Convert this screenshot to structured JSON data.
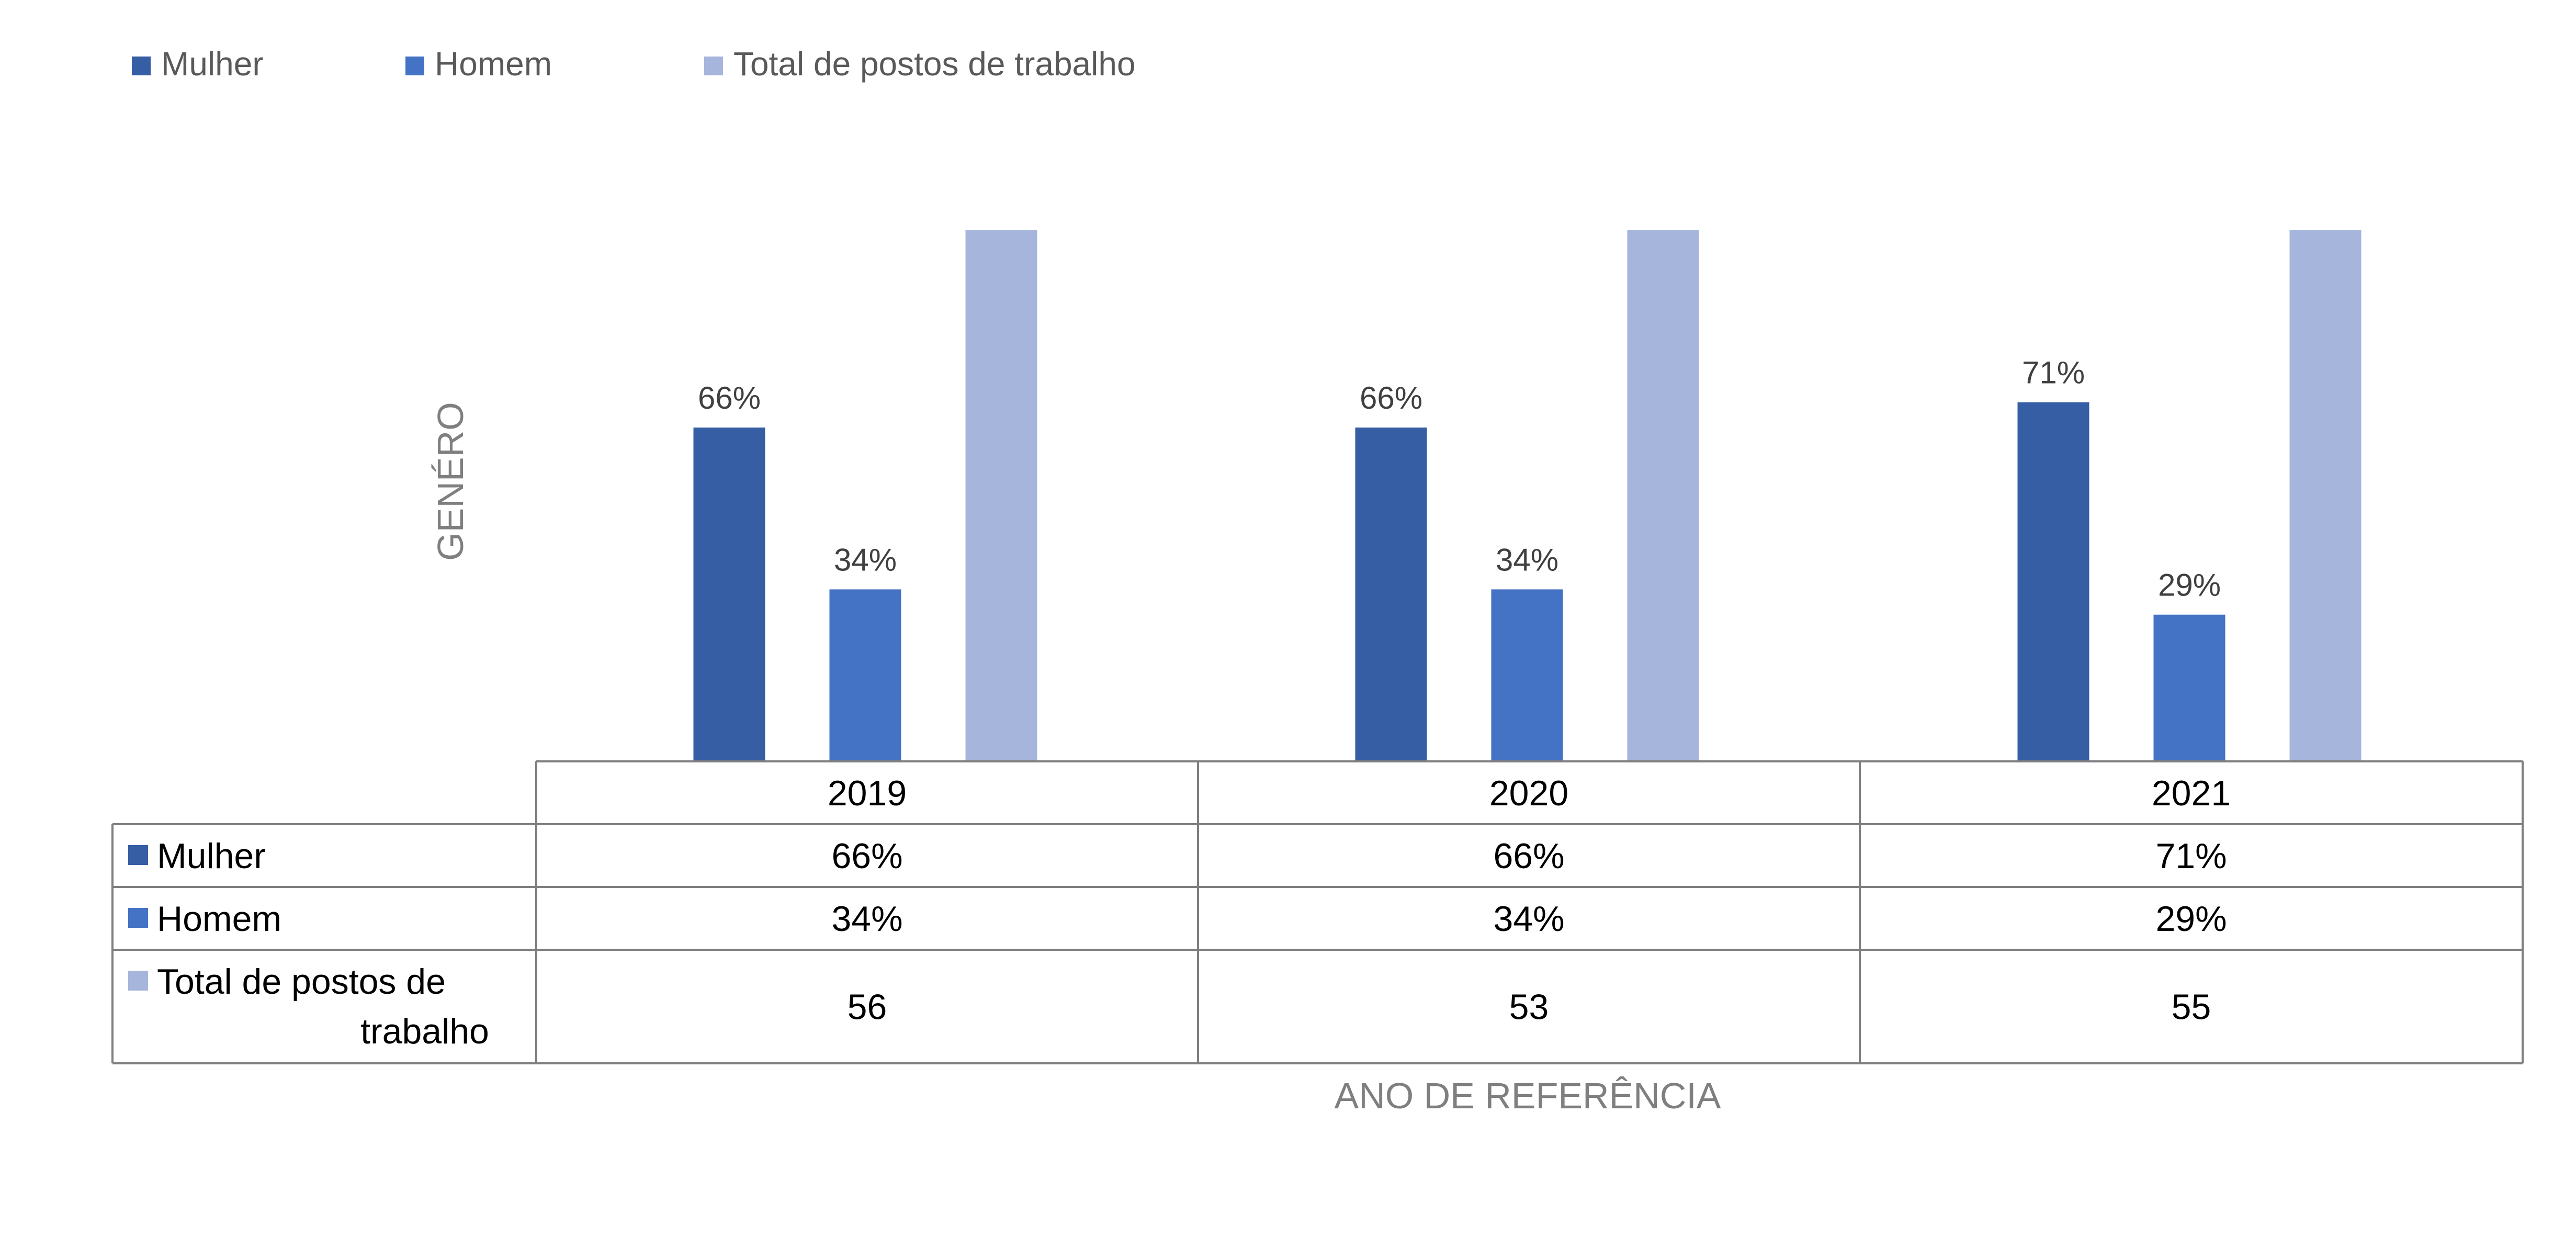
{
  "chart_data": {
    "type": "bar",
    "title": "",
    "xlabel": "ANO DE REFERÊNCIA",
    "ylabel": "GENÉRO",
    "categories": [
      "2019",
      "2020",
      "2021"
    ],
    "series": [
      {
        "name": "Mulher",
        "values": [
          0.66,
          0.66,
          0.71
        ],
        "labels": [
          "66%",
          "66%",
          "71%"
        ],
        "color": "#365ea5"
      },
      {
        "name": "Homem",
        "values": [
          0.34,
          0.34,
          0.29
        ],
        "labels": [
          "34%",
          "34%",
          "29%"
        ],
        "color": "#4472c4"
      },
      {
        "name": "Total de postos de trabalho",
        "values": [
          56,
          53,
          55
        ],
        "labels": [
          "56",
          "53",
          "55"
        ],
        "color": "#a6b5db"
      }
    ],
    "ylim": [
      0,
      1.05
    ],
    "grid": false,
    "legend_position": "top-left",
    "data_table": {
      "rows": [
        {
          "label": "Mulher",
          "cells": [
            "66%",
            "66%",
            "71%"
          ]
        },
        {
          "label": "Homem",
          "cells": [
            "34%",
            "34%",
            "29%"
          ]
        },
        {
          "label": "Total de postos de trabalho",
          "label_lines": [
            "Total de postos de",
            "trabalho"
          ],
          "cells": [
            "56",
            "53",
            "55"
          ]
        }
      ]
    }
  }
}
